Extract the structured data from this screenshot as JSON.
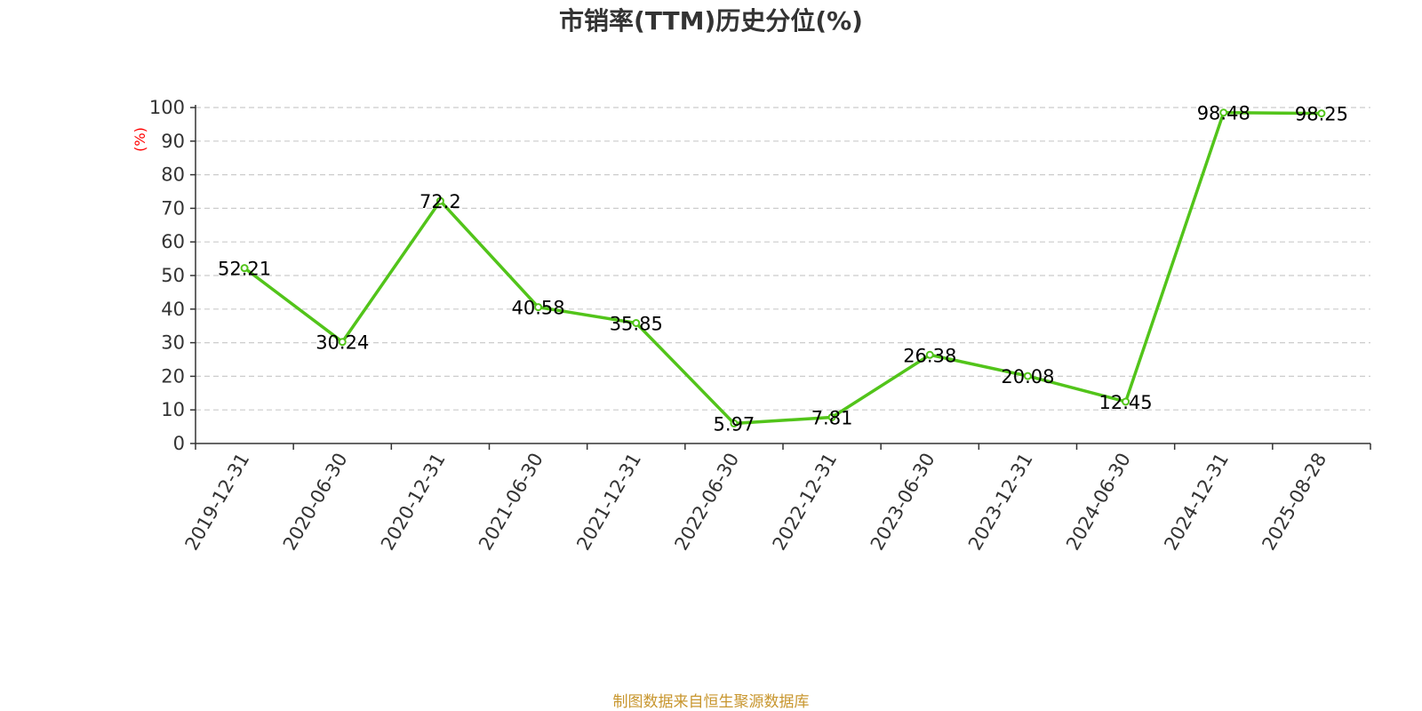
{
  "chart_data": {
    "type": "line",
    "title": "市销率(TTM)历史分位(%)",
    "ylabel": "(%)",
    "xlabel": "",
    "ylim": [
      0,
      100
    ],
    "yticks": [
      0,
      10,
      20,
      30,
      40,
      50,
      60,
      70,
      80,
      90,
      100
    ],
    "grid": true,
    "categories": [
      "2019-12-31",
      "2020-06-30",
      "2020-12-31",
      "2021-06-30",
      "2021-12-31",
      "2022-06-30",
      "2022-12-31",
      "2023-06-30",
      "2023-12-31",
      "2024-06-30",
      "2024-12-31",
      "2025-08-28"
    ],
    "series": [
      {
        "values": [
          52.21,
          30.24,
          72.2,
          40.58,
          35.85,
          5.97,
          7.81,
          26.38,
          20.08,
          12.45,
          98.48,
          98.25
        ],
        "labels": [
          "52.21",
          "30.24",
          "72.2",
          "40.58",
          "35.85",
          "5.97",
          "7.81",
          "26.38",
          "20.08",
          "12.45",
          "98.48",
          "98.25"
        ],
        "color": "#52c41a"
      }
    ],
    "source": "制图数据来自恒生聚源数据库"
  },
  "colors": {
    "line": "#52c41a",
    "axis": "#333333",
    "grid": "#cccccc",
    "ylabel": "#ff0000",
    "source": "#c8962e"
  }
}
